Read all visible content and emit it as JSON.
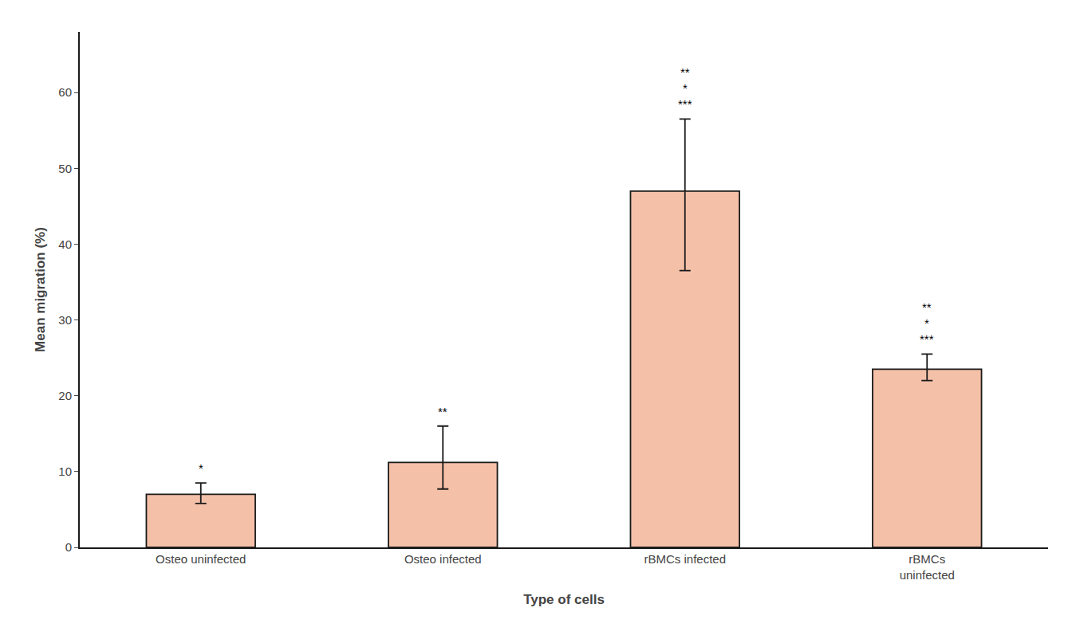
{
  "chart_data": {
    "type": "bar",
    "categories": [
      "Osteo uninfected",
      "Osteo infected",
      "rBMCs infected",
      "rBMCs\nuninfected"
    ],
    "values": [
      7.0,
      11.2,
      47.0,
      23.5
    ],
    "errors_upper": [
      1.5,
      4.8,
      9.5,
      2.0
    ],
    "errors_lower": [
      1.2,
      3.5,
      10.5,
      1.5
    ],
    "annotations": [
      [
        "*"
      ],
      [
        "**"
      ],
      [
        "***",
        "*",
        "**"
      ],
      [
        "***",
        "*",
        "**"
      ]
    ],
    "color": "#F5C0A8",
    "xlabel": "Type of cells",
    "ylabel": "Mean migration (%)",
    "ylim": [
      0,
      68
    ],
    "yticks": [
      0,
      10,
      20,
      30,
      40,
      50,
      60
    ],
    "grid": false
  }
}
